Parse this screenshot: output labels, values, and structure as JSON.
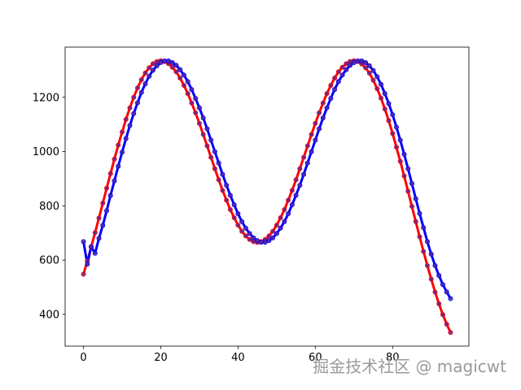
{
  "chart_data": {
    "type": "line",
    "x": [
      0,
      1,
      2,
      3,
      4,
      5,
      6,
      7,
      8,
      9,
      10,
      11,
      12,
      13,
      14,
      15,
      16,
      17,
      18,
      19,
      20,
      21,
      22,
      23,
      24,
      25,
      26,
      27,
      28,
      29,
      30,
      31,
      32,
      33,
      34,
      35,
      36,
      37,
      38,
      39,
      40,
      41,
      42,
      43,
      44,
      45,
      46,
      47,
      48,
      49,
      50,
      51,
      52,
      53,
      54,
      55,
      56,
      57,
      58,
      59,
      60,
      61,
      62,
      63,
      64,
      65,
      66,
      67,
      68,
      69,
      70,
      71,
      72,
      73,
      74,
      75,
      76,
      77,
      78,
      79,
      80,
      81,
      82,
      83,
      84,
      85,
      86,
      87,
      88,
      89,
      90,
      91,
      92,
      93,
      94,
      95
    ],
    "series": [
      {
        "color": "red",
        "marker_color": "#5a2a9c",
        "values": [
          548,
          596,
          648,
          701,
          755,
          810,
          865,
          919,
          972,
          1024,
          1072,
          1119,
          1161,
          1200,
          1235,
          1265,
          1290,
          1309,
          1324,
          1332,
          1335,
          1332,
          1324,
          1311,
          1294,
          1271,
          1244,
          1214,
          1179,
          1143,
          1104,
          1063,
          1021,
          979,
          937,
          896,
          857,
          821,
          786,
          756,
          729,
          706,
          689,
          676,
          668,
          665,
          668,
          676,
          689,
          706,
          729,
          756,
          786,
          821,
          857,
          896,
          937,
          979,
          1021,
          1063,
          1104,
          1143,
          1179,
          1214,
          1244,
          1271,
          1294,
          1311,
          1324,
          1332,
          1335,
          1332,
          1323,
          1309,
          1289,
          1263,
          1232,
          1197,
          1157,
          1114,
          1067,
          1016,
          964,
          910,
          854,
          798,
          742,
          686,
          632,
          580,
          530,
          482,
          439,
          399,
          364,
          333
        ]
      },
      {
        "color": "blue",
        "marker_color": "#5a2a9c",
        "values": [
          668,
          585,
          650,
          625,
          680,
          728,
          782,
          838,
          892,
          946,
          998,
          1048,
          1096,
          1140,
          1180,
          1218,
          1250,
          1278,
          1300,
          1316,
          1328,
          1334,
          1334,
          1328,
          1318,
          1302,
          1282,
          1258,
          1229,
          1196,
          1161,
          1124,
          1084,
          1042,
          1000,
          958,
          916,
          876,
          839,
          804,
          771,
          742,
          718,
          698,
          682,
          672,
          666,
          666,
          672,
          682,
          698,
          718,
          742,
          771,
          804,
          839,
          876,
          916,
          958,
          1000,
          1042,
          1084,
          1124,
          1161,
          1196,
          1229,
          1258,
          1282,
          1302,
          1318,
          1328,
          1334,
          1334,
          1328,
          1316,
          1299,
          1276,
          1248,
          1214,
          1177,
          1136,
          1090,
          1042,
          990,
          937,
          882,
          826,
          772,
          720,
          668,
          622,
          580,
          543,
          510,
          483,
          458
        ]
      }
    ],
    "xlim": [
      -4.75,
      99.75
    ],
    "xticks": [
      0,
      20,
      40,
      60,
      80
    ],
    "ylim": [
      283,
      1385
    ],
    "yticks": [
      400,
      600,
      800,
      1000,
      1200
    ],
    "grid": false,
    "watermark": "掘金技术社区 @ magicwt"
  }
}
